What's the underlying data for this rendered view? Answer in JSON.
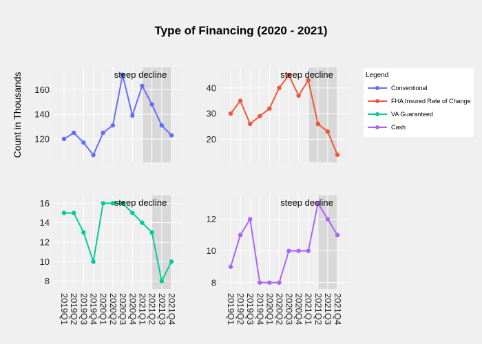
{
  "chart_data": {
    "type": "line",
    "title": "Type of Financing (2020 - 2021)",
    "ylabel": "Count in Thousands",
    "categories": [
      "2019Q1",
      "2019Q2",
      "2019Q3",
      "2019Q4",
      "2020Q1",
      "2020Q2",
      "2020Q3",
      "2020Q4",
      "2021Q1",
      "2021Q2",
      "2021Q3",
      "2021Q4"
    ],
    "annotation": "steep decline",
    "legend_title": "Legend",
    "legend_position": "right",
    "grid": true,
    "panels": [
      {
        "name": "Conventional",
        "color": "#636efa",
        "values": [
          120,
          125,
          117,
          107,
          125,
          131,
          172,
          139,
          163,
          148,
          131,
          123
        ],
        "ylim": [
          101,
          178
        ],
        "yticks": [
          120,
          140,
          160
        ],
        "shade_range": [
          "2021Q1",
          "2021Q4"
        ]
      },
      {
        "name": "FHA Insured Rate of Change",
        "color": "#ef553b",
        "values": [
          30,
          35,
          26,
          29,
          32,
          40,
          45,
          37,
          43,
          26,
          23,
          14
        ],
        "ylim": [
          11,
          48
        ],
        "yticks": [
          20,
          30,
          40
        ],
        "shade_range": [
          "2021Q1",
          "2021Q4"
        ]
      },
      {
        "name": "VA Guaranteed",
        "color": "#00cc96",
        "values": [
          15,
          15,
          13,
          10,
          16,
          16,
          16,
          15,
          14,
          13,
          8,
          10
        ],
        "ylim": [
          7.2,
          16.8
        ],
        "yticks": [
          8,
          10,
          12,
          14,
          16
        ],
        "shade_range": [
          "2021Q2",
          "2021Q4"
        ]
      },
      {
        "name": "Cash",
        "color": "#ab63fa",
        "values": [
          9,
          11,
          12,
          8,
          8,
          8,
          10,
          10,
          10,
          13,
          12,
          11
        ],
        "ylim": [
          7.6,
          13.5
        ],
        "yticks": [
          8,
          10,
          12
        ],
        "shade_range": [
          "2021Q2",
          "2021Q4"
        ]
      }
    ]
  }
}
